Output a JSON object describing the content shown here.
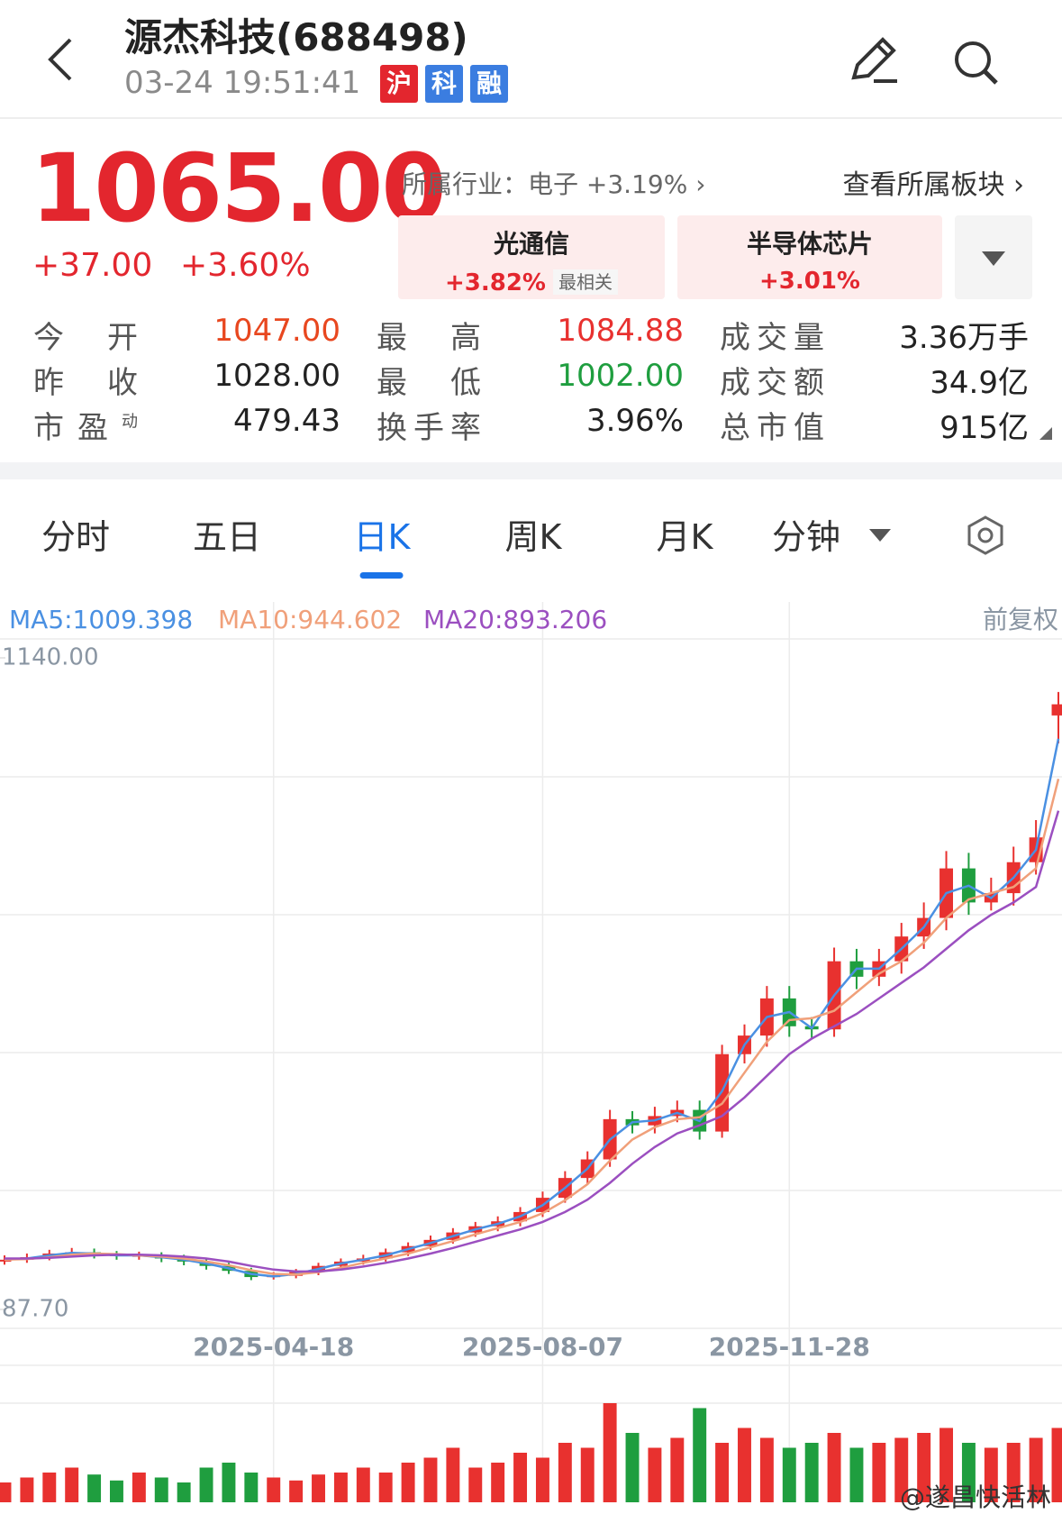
{
  "header": {
    "title": "源杰科技(688498)",
    "time": "03-24 19:51:41",
    "badges": [
      {
        "text": "沪",
        "color": "#e3262e"
      },
      {
        "text": "科",
        "color": "#3b7de0"
      },
      {
        "text": "融",
        "color": "#3b7de0"
      }
    ]
  },
  "quote": {
    "price": "1065.00",
    "change": "+37.00",
    "change_pct": "+3.60%",
    "industry": "所属行业：电子 +3.19%",
    "sector_link": "查看所属板块",
    "sectors": [
      {
        "name": "光通信",
        "change": "+3.82%",
        "tag": "最相关"
      },
      {
        "name": "半导体芯片",
        "change": "+3.01%"
      }
    ],
    "stats": [
      [
        {
          "label": "今开",
          "value": "1047.00",
          "color": "#e8471f"
        },
        {
          "label": "最高",
          "value": "1084.88",
          "color": "#e8312f"
        },
        {
          "label": "成交量",
          "value": "3.36万手",
          "color": "#222222"
        }
      ],
      [
        {
          "label": "昨收",
          "value": "1028.00",
          "color": "#222222"
        },
        {
          "label": "最低",
          "value": "1002.00",
          "color": "#1f9e3f"
        },
        {
          "label": "成交额",
          "value": "34.9亿",
          "color": "#222222"
        }
      ],
      [
        {
          "label": "市盈",
          "sup": "动",
          "value": "479.43",
          "color": "#222222"
        },
        {
          "label": "换手率",
          "value": "3.96%",
          "color": "#222222"
        },
        {
          "label": "总市值",
          "value": "915亿",
          "color": "#222222"
        }
      ]
    ]
  },
  "tabs": {
    "items": [
      "分时",
      "五日",
      "日K",
      "周K",
      "月K",
      "分钟"
    ],
    "active": 2
  },
  "chart_data": {
    "type": "candlestick",
    "categories": [
      null,
      null,
      null,
      null,
      null,
      null,
      null,
      null,
      null,
      null,
      null,
      null,
      "2025-04-18",
      null,
      null,
      null,
      null,
      null,
      null,
      null,
      null,
      null,
      null,
      null,
      "2025-08-07",
      null,
      null,
      null,
      null,
      null,
      null,
      null,
      null,
      null,
      null,
      "2025-11-28",
      null,
      null,
      null,
      null,
      null,
      null,
      null,
      null,
      null,
      null,
      null,
      null
    ],
    "open": [
      165,
      168,
      172,
      178,
      180,
      176,
      174,
      175,
      170,
      165,
      158,
      150,
      140,
      142,
      148,
      158,
      165,
      170,
      180,
      190,
      200,
      212,
      222,
      230,
      245,
      268,
      300,
      330,
      395,
      385,
      400,
      410,
      375,
      500,
      530,
      590,
      545,
      540,
      650,
      625,
      650,
      690,
      720,
      800,
      745,
      760,
      810,
      1047
    ],
    "high": [
      175,
      178,
      184,
      187,
      186,
      182,
      181,
      180,
      176,
      170,
      163,
      155,
      148,
      153,
      163,
      170,
      176,
      186,
      196,
      207,
      219,
      229,
      238,
      253,
      278,
      311,
      343,
      410,
      408,
      415,
      425,
      425,
      515,
      548,
      610,
      610,
      560,
      672,
      670,
      670,
      712,
      745,
      828,
      825,
      785,
      835,
      878,
      1084.88
    ],
    "low": [
      160,
      163,
      167,
      172,
      170,
      168,
      168,
      164,
      159,
      152,
      145,
      135,
      136,
      138,
      143,
      153,
      160,
      165,
      174,
      184,
      194,
      205,
      214,
      222,
      237,
      260,
      290,
      318,
      372,
      372,
      390,
      362,
      365,
      485,
      512,
      528,
      525,
      528,
      605,
      610,
      630,
      670,
      700,
      725,
      732,
      740,
      790,
      1002
    ],
    "close": [
      168,
      172,
      178,
      180,
      176,
      174,
      175,
      170,
      165,
      158,
      150,
      140,
      142,
      148,
      158,
      165,
      170,
      180,
      190,
      200,
      212,
      222,
      230,
      245,
      268,
      300,
      330,
      395,
      385,
      400,
      410,
      375,
      500,
      530,
      590,
      545,
      540,
      650,
      625,
      650,
      690,
      720,
      800,
      745,
      760,
      810,
      850,
      1065
    ],
    "up_color": "#e8312f",
    "down_color": "#1f9e3f",
    "ylim": [
      87.7,
      1140
    ],
    "yticks": [
      {
        "value": 1140,
        "label": "1140.00"
      },
      {
        "value": 87.7,
        "label": "87.70"
      }
    ],
    "ma": [
      {
        "label": "MA5:1009.398",
        "color": "#4a90e2",
        "values": [
          168,
          170,
          175,
          179,
          178,
          175,
          175,
          172,
          168,
          162,
          154,
          145,
          141,
          145,
          153,
          162,
          168,
          175,
          185,
          195,
          206,
          217,
          226,
          238,
          256,
          284,
          315,
          362,
          390,
          393,
          405,
          392,
          440,
          515,
          560,
          568,
          542,
          595,
          638,
          638,
          670,
          705,
          760,
          772,
          752,
          785,
          830,
          1009.398
        ]
      },
      {
        "label": "MA10:944.602",
        "color": "#f0a07a",
        "values": [
          168,
          169,
          172,
          176,
          178,
          177,
          175,
          173,
          170,
          165,
          159,
          151,
          145,
          144,
          148,
          155,
          163,
          170,
          178,
          188,
          198,
          209,
          219,
          229,
          243,
          264,
          290,
          328,
          362,
          382,
          395,
          398,
          420,
          470,
          520,
          555,
          558,
          570,
          600,
          630,
          650,
          680,
          720,
          750,
          760,
          770,
          800,
          944.602
        ]
      },
      {
        "label": "MA20:893.206",
        "color": "#9b4fc0",
        "values": [
          170,
          170,
          171,
          173,
          175,
          176,
          176,
          175,
          173,
          170,
          165,
          158,
          152,
          149,
          149,
          152,
          157,
          163,
          170,
          178,
          187,
          197,
          207,
          217,
          229,
          245,
          265,
          292,
          323,
          350,
          372,
          385,
          400,
          430,
          465,
          500,
          525,
          545,
          565,
          590,
          615,
          640,
          670,
          700,
          725,
          745,
          770,
          893.206
        ]
      }
    ],
    "adjust_label": "前复权",
    "volume": {
      "ylim": [
        0,
        100
      ],
      "values": [
        20,
        25,
        30,
        35,
        28,
        22,
        30,
        25,
        20,
        35,
        40,
        30,
        25,
        22,
        28,
        30,
        35,
        30,
        40,
        45,
        55,
        35,
        40,
        50,
        45,
        60,
        55,
        100,
        70,
        55,
        65,
        95,
        60,
        75,
        65,
        55,
        60,
        70,
        55,
        60,
        65,
        70,
        75,
        60,
        55,
        60,
        65,
        75
      ]
    }
  },
  "watermark": "@遂昌快活林"
}
